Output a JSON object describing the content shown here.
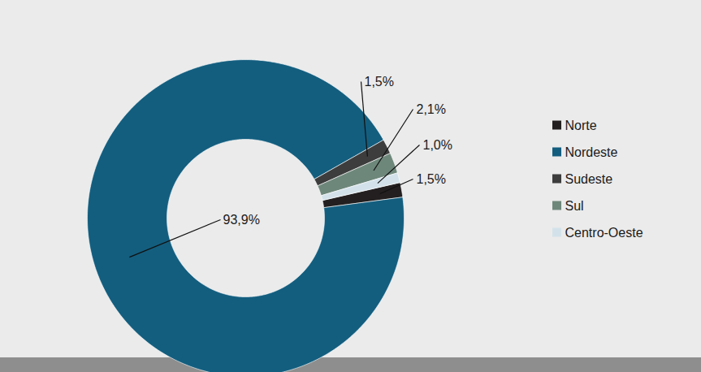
{
  "chart_data": {
    "type": "donut",
    "categories": [
      "Norte",
      "Nordeste",
      "Sudeste",
      "Sul",
      "Centro-Oeste"
    ],
    "values": [
      1.5,
      93.9,
      1.5,
      2.1,
      1.0
    ],
    "value_labels": [
      "1,5%",
      "93,9%",
      "1,5%",
      "2,1%",
      "1,0%"
    ],
    "colors": [
      "#231f20",
      "#135e7f",
      "#3d3d3d",
      "#6e877b",
      "#d3e2ea"
    ],
    "data_labels": true,
    "legend": "right"
  }
}
